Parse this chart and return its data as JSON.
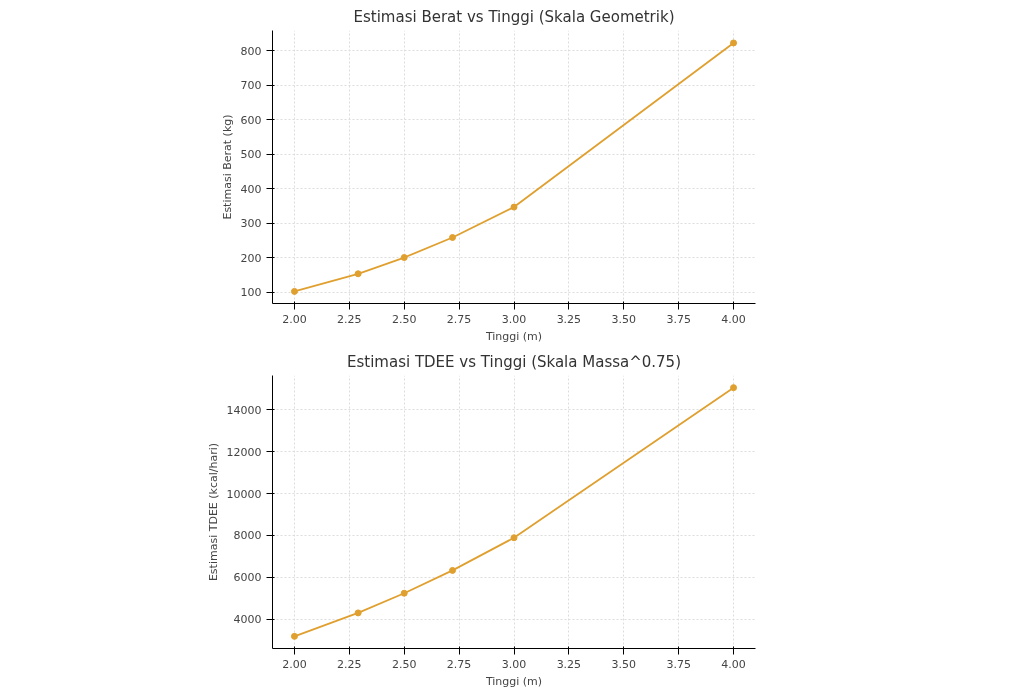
{
  "chart_data": [
    {
      "type": "line",
      "title": "Estimasi Berat vs Tinggi (Skala Geometrik)",
      "xlabel": "Tinggi (m)",
      "ylabel": "Estimasi Berat (kg)",
      "x": [
        2.0,
        2.29,
        2.5,
        2.72,
        3.0,
        4.0
      ],
      "series": [
        {
          "color": "#e0a030",
          "values": [
            103,
            154,
            201,
            259,
            347,
            822
          ]
        }
      ],
      "xlim": [
        1.9,
        4.1
      ],
      "xticks": [
        {
          "value": 2.0,
          "label": "2.00"
        },
        {
          "value": 2.25,
          "label": "2.25"
        },
        {
          "value": 2.5,
          "label": "2.50"
        },
        {
          "value": 2.75,
          "label": "2.75"
        },
        {
          "value": 3.0,
          "label": "3.00"
        },
        {
          "value": 3.25,
          "label": "3.25"
        },
        {
          "value": 3.5,
          "label": "3.50"
        },
        {
          "value": 3.75,
          "label": "3.75"
        },
        {
          "value": 4.0,
          "label": "4.00"
        }
      ],
      "ylim": [
        68,
        858
      ],
      "yticks": [
        100,
        200,
        300,
        400,
        500,
        600,
        700,
        800
      ],
      "grid": true,
      "marker": "circle",
      "line_style": "solid"
    },
    {
      "type": "line",
      "title": "Estimasi TDEE vs Tinggi (Skala Massa^0.75)",
      "xlabel": "Tinggi (m)",
      "ylabel": "Estimasi TDEE (kcal/hari)",
      "x": [
        2.0,
        2.29,
        2.5,
        2.72,
        3.0,
        4.0
      ],
      "series": [
        {
          "color": "#e0a030",
          "values": [
            3180,
            4300,
            5240,
            6330,
            7890,
            15060
          ]
        }
      ],
      "xlim": [
        1.9,
        4.1
      ],
      "xticks": [
        {
          "value": 2.0,
          "label": "2.00"
        },
        {
          "value": 2.25,
          "label": "2.25"
        },
        {
          "value": 2.5,
          "label": "2.50"
        },
        {
          "value": 2.75,
          "label": "2.75"
        },
        {
          "value": 3.0,
          "label": "3.00"
        },
        {
          "value": 3.25,
          "label": "3.25"
        },
        {
          "value": 3.5,
          "label": "3.50"
        },
        {
          "value": 3.75,
          "label": "3.75"
        },
        {
          "value": 4.0,
          "label": "4.00"
        }
      ],
      "ylim": [
        2600,
        15640
      ],
      "yticks": [
        4000,
        6000,
        8000,
        10000,
        12000,
        14000
      ],
      "grid": true,
      "marker": "circle",
      "line_style": "solid"
    }
  ]
}
